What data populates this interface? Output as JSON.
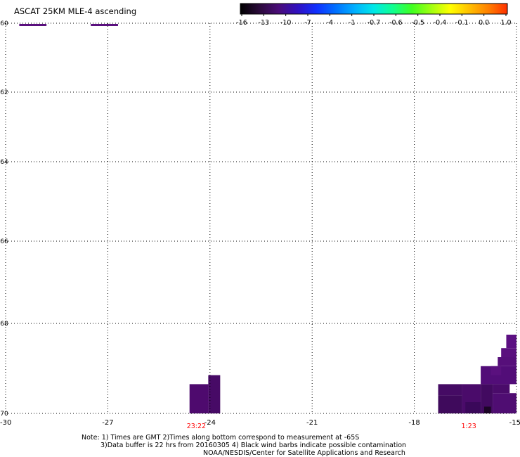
{
  "title": "ASCAT 25KM MLE-4 ascending",
  "colorbar": {
    "labels": [
      "-16",
      "-13",
      "-10",
      "-7",
      "-4",
      "-1",
      "-0.7",
      "-0.6",
      "-0.5",
      "-0.4",
      "-0.1",
      "0.0",
      "1.0"
    ],
    "colors": [
      "#2a0a2e",
      "#5a107e",
      "#3a10c8",
      "#1a50ff",
      "#0aa0ff",
      "#00e0ff",
      "#20ffb0",
      "#40ff40",
      "#a0ff20",
      "#ffff00",
      "#ffb000",
      "#ff6000",
      "#ff1000"
    ]
  },
  "notes": {
    "line1": "Note: 1) Times are GMT 2)Times along bottom correspond to measurement at -65S",
    "line2": "3)Data buffer is 22 hrs from 20160305 4) Black wind barbs indicate possible contamination",
    "line3": "NOAA/NESDIS/Center for Satellite Applications and Research"
  },
  "chart_data": {
    "type": "heatmap",
    "title": "ASCAT 25KM MLE-4 ascending",
    "xlim": [
      -30,
      -15
    ],
    "ylim": [
      -70,
      -60
    ],
    "x_ticks": [
      "-30",
      "-27",
      "-24",
      "-21",
      "-18",
      "-15"
    ],
    "y_ticks": [
      "-60",
      "-62",
      "-64",
      "-66",
      "-68",
      "-70"
    ],
    "grid": true,
    "time_labels": [
      {
        "x": -24.4,
        "text": "23:22",
        "color": "#ff0000"
      },
      {
        "x": -16.4,
        "text": "1:23",
        "color": "#ff0000"
      }
    ],
    "legend_swaths": [
      {
        "x0": -29.6,
        "x1": -28.8,
        "y": -60.05,
        "color": "#5a107e"
      },
      {
        "x0": -27.5,
        "x1": -26.7,
        "y": -60.05,
        "color": "#5a107e"
      }
    ],
    "cells": [
      {
        "x0": -24.6,
        "x1": -24.05,
        "y0": -70.0,
        "y1": -69.35,
        "color": "#4e0a6e"
      },
      {
        "x0": -24.05,
        "x1": -23.7,
        "y0": -70.0,
        "y1": -69.15,
        "color": "#470a66"
      },
      {
        "x0": -17.3,
        "x1": -16.6,
        "y0": -70.0,
        "y1": -69.6,
        "color": "#3f0a5c"
      },
      {
        "x0": -17.3,
        "x1": -16.6,
        "y0": -69.6,
        "y1": -69.35,
        "color": "#450b64"
      },
      {
        "x0": -16.6,
        "x1": -16.05,
        "y0": -70.0,
        "y1": -69.35,
        "color": "#4a0b6a"
      },
      {
        "x0": -16.5,
        "x1": -16.05,
        "y0": -70.0,
        "y1": -69.75,
        "color": "#3a085a"
      },
      {
        "x0": -16.05,
        "x1": -15.7,
        "y0": -70.0,
        "y1": -69.35,
        "color": "#420a60"
      },
      {
        "x0": -15.95,
        "x1": -15.75,
        "y0": -70.0,
        "y1": -69.85,
        "color": "#1c0526"
      },
      {
        "x0": -15.7,
        "x1": -15.0,
        "y0": -70.0,
        "y1": -69.55,
        "color": "#4f0d72"
      },
      {
        "x0": -16.05,
        "x1": -15.0,
        "y0": -69.35,
        "y1": -68.95,
        "color": "#520d78"
      },
      {
        "x0": -15.75,
        "x1": -15.45,
        "y0": -69.15,
        "y1": -68.95,
        "color": "#5a107e"
      },
      {
        "x0": -15.55,
        "x1": -15.0,
        "y0": -68.95,
        "y1": -68.75,
        "color": "#560f7a"
      },
      {
        "x0": -15.45,
        "x1": -15.0,
        "y0": -68.75,
        "y1": -68.55,
        "color": "#5a107e"
      },
      {
        "x0": -15.3,
        "x1": -15.0,
        "y0": -68.55,
        "y1": -68.25,
        "color": "#5c1082"
      },
      {
        "x0": -15.7,
        "x1": -15.2,
        "y0": -69.55,
        "y1": -69.35,
        "color": "#4a0b6a"
      }
    ]
  }
}
